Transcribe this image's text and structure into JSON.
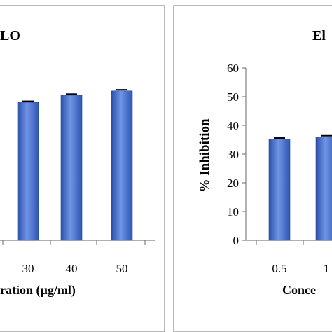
{
  "chart_data": [
    {
      "type": "bar",
      "title": "LO",
      "xlabel": "ration (µg/ml)",
      "ylabel": "",
      "categories": [
        "30",
        "40",
        "50"
      ],
      "values": [
        48.0,
        50.5,
        52.0
      ],
      "errors": [
        0.4,
        0.4,
        0.4
      ],
      "ylim": [
        0,
        60
      ],
      "grid": false,
      "bar_color": "#3f67c8"
    },
    {
      "type": "bar",
      "title": "El",
      "xlabel": "Conce",
      "ylabel": "% Inhibition",
      "categories": [
        "0.5",
        "1"
      ],
      "values": [
        35.2,
        36.0
      ],
      "errors": [
        0.4,
        0.4
      ],
      "ylim": [
        0,
        60
      ],
      "yticks": [
        "0",
        "10",
        "20",
        "30",
        "40",
        "50",
        "60"
      ],
      "grid": false,
      "bar_color": "#3f67c8"
    }
  ]
}
